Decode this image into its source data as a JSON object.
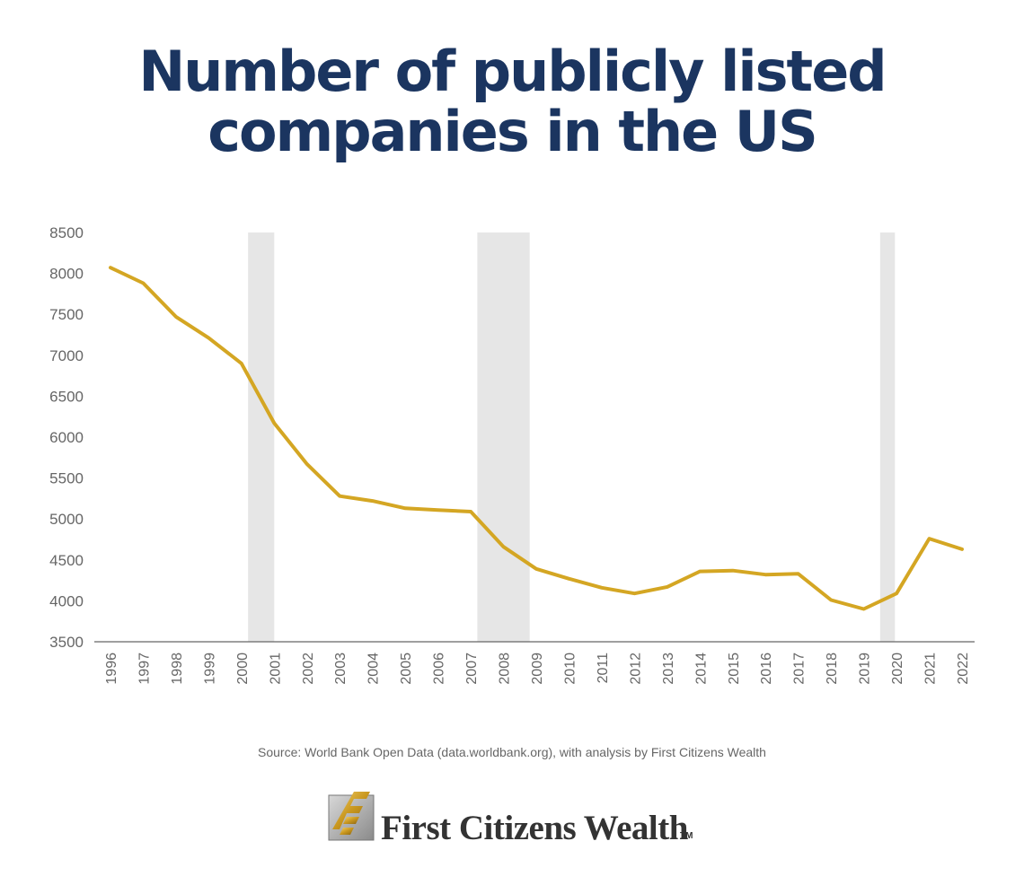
{
  "title_lines": [
    "Number of publicly listed",
    "companies in the US"
  ],
  "source": "Source: World Bank Open Data (data.worldbank.org), with analysis by First Citizens Wealth",
  "logo": {
    "text": "First Citizens Wealth",
    "tm": "TM"
  },
  "colors": {
    "title": "#1b3560",
    "line": "#d4a623",
    "shade": "#e6e6e6",
    "axis_text": "#666666"
  },
  "chart_data": {
    "type": "line",
    "title": "Number of publicly listed companies in the US",
    "xlabel": "",
    "ylabel": "",
    "x": [
      1996,
      1997,
      1998,
      1999,
      2000,
      2001,
      2002,
      2003,
      2004,
      2005,
      2006,
      2007,
      2008,
      2009,
      2010,
      2011,
      2012,
      2013,
      2014,
      2015,
      2016,
      2017,
      2018,
      2019,
      2020,
      2021,
      2022
    ],
    "x_tick_labels": [
      "1996",
      "1997",
      "1998",
      "1999",
      "2000",
      "2001",
      "2002",
      "2003",
      "2004",
      "2005",
      "2006",
      "2007",
      "2008",
      "2009",
      "2010",
      "2011",
      "2012",
      "2013",
      "2014",
      "2015",
      "2016",
      "2017",
      "2018",
      "2019",
      "2020",
      "2021",
      "2022"
    ],
    "series": [
      {
        "values": [
          8070,
          7880,
          7470,
          7210,
          6900,
          6170,
          5670,
          5280,
          5220,
          5130,
          5110,
          5090,
          4660,
          4390,
          4270,
          4160,
          4090,
          4170,
          4360,
          4370,
          4320,
          4330,
          4010,
          3900,
          4090,
          4760,
          4630
        ]
      }
    ],
    "ylim": [
      3500,
      8500
    ],
    "y_ticks": [
      3500,
      4000,
      4500,
      5000,
      5500,
      6000,
      6500,
      7000,
      7500,
      8000,
      8500
    ],
    "shaded_periods": [
      [
        2000.2,
        2001.0
      ],
      [
        2007.2,
        2008.8
      ],
      [
        2019.5,
        2019.95
      ]
    ],
    "grid": false,
    "legend": "none"
  }
}
